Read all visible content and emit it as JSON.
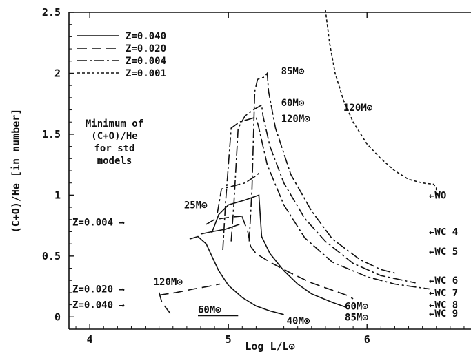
{
  "chart_data": {
    "type": "line",
    "xlabel": "Log L/L⊙",
    "ylabel": "(C+O)/He [in number]",
    "xlim": [
      3.85,
      6.75
    ],
    "ylim": [
      -0.1,
      2.5
    ],
    "x_ticks": [
      "4",
      "5",
      "6"
    ],
    "y_ticks": [
      "0",
      "0.5",
      "1",
      "1.5",
      "2",
      "2.5"
    ],
    "grid": false,
    "legend_position": "top-left",
    "series": [
      {
        "name": "Z=0.040",
        "dash": "solid",
        "tracks": [
          {
            "mass": "40M⊙",
            "points": [
              [
                4.72,
                0.64
              ],
              [
                4.78,
                0.66
              ],
              [
                4.84,
                0.6
              ],
              [
                4.88,
                0.5
              ],
              [
                4.93,
                0.38
              ],
              [
                5.0,
                0.26
              ],
              [
                5.1,
                0.16
              ],
              [
                5.2,
                0.09
              ],
              [
                5.3,
                0.05
              ],
              [
                5.4,
                0.02
              ]
            ]
          },
          {
            "mass": "60M⊙",
            "points": [
              [
                4.78,
                0.01
              ],
              [
                5.07,
                0.01
              ]
            ]
          },
          {
            "mass": "85M⊙",
            "points": [
              [
                4.88,
                0.69
              ],
              [
                4.93,
                0.84
              ],
              [
                5.0,
                0.92
              ],
              [
                5.12,
                0.96
              ],
              [
                5.22,
                1.0
              ],
              [
                5.24,
                0.66
              ],
              [
                5.3,
                0.52
              ],
              [
                5.4,
                0.38
              ],
              [
                5.5,
                0.27
              ],
              [
                5.6,
                0.19
              ],
              [
                5.75,
                0.12
              ],
              [
                5.85,
                0.08
              ]
            ]
          },
          {
            "mass": "25M⊙",
            "points": [
              [
                4.8,
                0.68
              ],
              [
                4.88,
                0.7
              ],
              [
                4.98,
                0.72
              ],
              [
                5.08,
                0.76
              ]
            ]
          }
        ]
      },
      {
        "name": "Z=0.020",
        "dash": "14,7",
        "tracks": [
          {
            "mass": "120M⊙",
            "points": [
              [
                4.5,
                0.18
              ],
              [
                4.62,
                0.2
              ],
              [
                4.75,
                0.23
              ],
              [
                4.85,
                0.25
              ],
              [
                4.94,
                0.27
              ]
            ]
          },
          {
            "mass": "",
            "points": [
              [
                4.5,
                0.2
              ],
              [
                4.52,
                0.12
              ],
              [
                4.56,
                0.06
              ],
              [
                4.6,
                0.0
              ]
            ]
          },
          {
            "mass": "",
            "points": [
              [
                4.84,
                0.76
              ],
              [
                4.9,
                0.8
              ],
              [
                5.02,
                0.82
              ],
              [
                5.12,
                0.83
              ]
            ]
          },
          {
            "mass": "",
            "points": [
              [
                5.1,
                0.82
              ],
              [
                5.14,
                0.7
              ],
              [
                5.16,
                0.58
              ],
              [
                5.2,
                0.52
              ],
              [
                5.3,
                0.45
              ],
              [
                5.45,
                0.36
              ],
              [
                5.6,
                0.28
              ],
              [
                5.75,
                0.22
              ],
              [
                5.85,
                0.18
              ],
              [
                5.9,
                0.15
              ]
            ]
          }
        ]
      },
      {
        "name": "Z=0.004",
        "dash": "14,4,3,4",
        "tracks": [
          {
            "mass": "85M⊙",
            "points": [
              [
                5.15,
                0.62
              ],
              [
                5.17,
                1.05
              ],
              [
                5.19,
                1.85
              ],
              [
                5.21,
                1.95
              ],
              [
                5.26,
                1.97
              ],
              [
                5.28,
                2.0
              ],
              [
                5.29,
                1.85
              ],
              [
                5.34,
                1.55
              ],
              [
                5.45,
                1.17
              ],
              [
                5.6,
                0.87
              ],
              [
                5.75,
                0.64
              ],
              [
                5.95,
                0.47
              ],
              [
                6.1,
                0.39
              ],
              [
                6.2,
                0.36
              ]
            ]
          },
          {
            "mass": "60M⊙",
            "points": [
              [
                5.02,
                0.62
              ],
              [
                5.04,
                0.93
              ],
              [
                5.07,
                1.55
              ],
              [
                5.12,
                1.65
              ],
              [
                5.18,
                1.7
              ],
              [
                5.24,
                1.74
              ],
              [
                5.25,
                1.65
              ],
              [
                5.3,
                1.4
              ],
              [
                5.4,
                1.1
              ],
              [
                5.55,
                0.81
              ],
              [
                5.7,
                0.62
              ],
              [
                5.9,
                0.44
              ],
              [
                6.1,
                0.34
              ],
              [
                6.35,
                0.28
              ]
            ]
          },
          {
            "mass": "120M⊙",
            "points": [
              [
                4.96,
                0.55
              ],
              [
                4.98,
                0.95
              ],
              [
                5.02,
                1.55
              ],
              [
                5.08,
                1.6
              ],
              [
                5.14,
                1.62
              ],
              [
                5.2,
                1.64
              ],
              [
                5.22,
                1.55
              ],
              [
                5.28,
                1.25
              ],
              [
                5.4,
                0.92
              ],
              [
                5.55,
                0.65
              ],
              [
                5.75,
                0.45
              ],
              [
                6.0,
                0.33
              ],
              [
                6.2,
                0.27
              ],
              [
                6.45,
                0.23
              ]
            ]
          },
          {
            "mass": "25M⊙",
            "points": [
              [
                4.92,
                0.85
              ],
              [
                4.95,
                1.05
              ],
              [
                5.05,
                1.08
              ],
              [
                5.12,
                1.1
              ],
              [
                5.2,
                1.16
              ],
              [
                5.22,
                1.18
              ]
            ]
          }
        ]
      },
      {
        "name": "Z=0.001",
        "dash": "4,3",
        "tracks": [
          {
            "mass": "120M⊙",
            "points": [
              [
                5.7,
                2.52
              ],
              [
                5.73,
                2.25
              ],
              [
                5.77,
                2.0
              ],
              [
                5.83,
                1.78
              ],
              [
                5.9,
                1.6
              ],
              [
                6.0,
                1.42
              ],
              [
                6.1,
                1.3
              ],
              [
                6.2,
                1.2
              ],
              [
                6.3,
                1.13
              ],
              [
                6.4,
                1.1
              ],
              [
                6.48,
                1.09
              ],
              [
                6.5,
                1.06
              ],
              [
                6.5,
                0.98
              ]
            ]
          }
        ]
      }
    ],
    "minimum_marks": [
      {
        "label": "Z=0.004",
        "arrow": "→",
        "x": 4.85,
        "y": 0.78
      },
      {
        "label": "Z=0.020",
        "arrow": "→",
        "x": 4.47,
        "y": 0.23
      },
      {
        "label": "Z=0.040",
        "arrow": "→",
        "x": 4.45,
        "y": 0.1
      }
    ],
    "annotations": {
      "minimum_heading": [
        "Minimum of",
        "(C+O)/He",
        "for std",
        "models"
      ],
      "mass_labels": [
        {
          "text": "85M⊙",
          "x": 5.38,
          "y": 2.02
        },
        {
          "text": "60M⊙",
          "x": 5.38,
          "y": 1.76
        },
        {
          "text": "120M⊙",
          "x": 5.38,
          "y": 1.63
        },
        {
          "text": "120M⊙",
          "x": 5.83,
          "y": 1.72
        },
        {
          "text": "25M⊙",
          "x": 4.68,
          "y": 0.92
        },
        {
          "text": "120M⊙",
          "x": 4.46,
          "y": 0.29
        },
        {
          "text": "60M⊙",
          "x": 4.78,
          "y": 0.06
        },
        {
          "text": "40M⊙",
          "x": 5.42,
          "y": -0.03
        },
        {
          "text": "60M⊙",
          "x": 5.84,
          "y": 0.09
        },
        {
          "text": "85M⊙",
          "x": 5.84,
          "y": 0.0
        }
      ],
      "wr_types": [
        {
          "label": "←WO",
          "y": 1.0
        },
        {
          "label": "←WC 4",
          "y": 0.7
        },
        {
          "label": "←WC 5",
          "y": 0.54
        },
        {
          "label": "←WC 6",
          "y": 0.3
        },
        {
          "label": "←WC 7",
          "y": 0.2
        },
        {
          "label": "←WC 8",
          "y": 0.1
        },
        {
          "label": "←WC 9",
          "y": 0.03
        }
      ]
    }
  }
}
